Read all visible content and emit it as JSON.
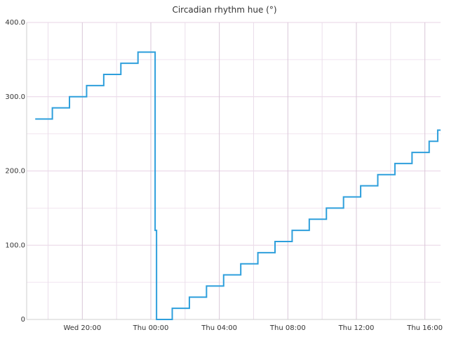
{
  "chart_data": {
    "type": "line",
    "title": "Circadian rhythm hue (°)",
    "xlabel": "",
    "ylabel": "",
    "ylim": [
      0,
      400
    ],
    "xlim": [
      "Wed 16:45",
      "Thu 16:55"
    ],
    "y_ticks": [
      "0",
      "100.0",
      "200.0",
      "300.0",
      "400.0"
    ],
    "x_ticks": [
      {
        "t": "Wed 20:00",
        "label": "Wed 20:00"
      },
      {
        "t": "Thu 00:00",
        "label": "Thu 00:00"
      },
      {
        "t": "Thu 04:00",
        "label": "Thu 04:00"
      },
      {
        "t": "Thu 08:00",
        "label": "Thu 08:00"
      },
      {
        "t": "Thu 12:00",
        "label": "Thu 12:00"
      },
      {
        "t": "Thu 16:00",
        "label": "Thu 16:00"
      }
    ],
    "grid": true,
    "step": "post",
    "series": [
      {
        "color": "#2e9fdc",
        "points": [
          [
            "Wed 17:15",
            270
          ],
          [
            "Wed 18:15",
            285
          ],
          [
            "Wed 19:15",
            300
          ],
          [
            "Wed 20:15",
            315
          ],
          [
            "Wed 21:15",
            330
          ],
          [
            "Wed 22:15",
            345
          ],
          [
            "Wed 23:15",
            360
          ],
          [
            "Thu 00:15",
            120
          ],
          [
            "Thu 00:20",
            0
          ],
          [
            "Thu 01:15",
            15
          ],
          [
            "Thu 02:15",
            30
          ],
          [
            "Thu 03:15",
            45
          ],
          [
            "Thu 04:15",
            60
          ],
          [
            "Thu 05:15",
            75
          ],
          [
            "Thu 06:15",
            90
          ],
          [
            "Thu 07:15",
            105
          ],
          [
            "Thu 08:15",
            120
          ],
          [
            "Thu 09:15",
            135
          ],
          [
            "Thu 10:15",
            150
          ],
          [
            "Thu 11:15",
            165
          ],
          [
            "Thu 12:15",
            180
          ],
          [
            "Thu 13:15",
            195
          ],
          [
            "Thu 14:15",
            210
          ],
          [
            "Thu 15:15",
            225
          ],
          [
            "Thu 16:15",
            240
          ],
          [
            "Thu 16:45",
            255
          ],
          [
            "Thu 16:55",
            255
          ]
        ]
      }
    ]
  }
}
